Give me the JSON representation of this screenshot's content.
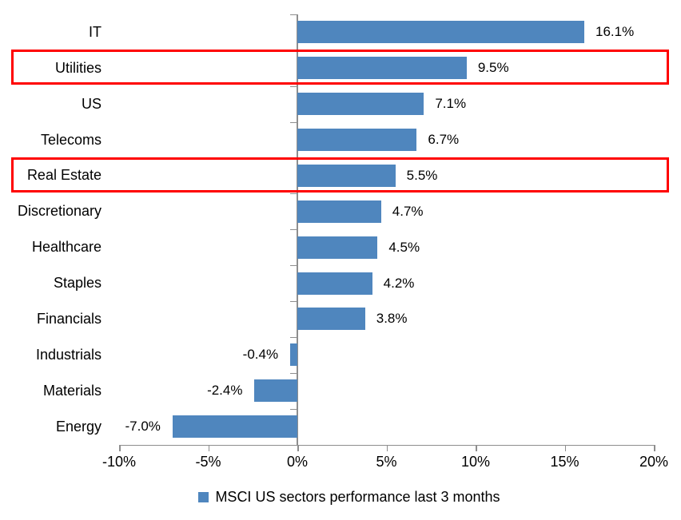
{
  "chart_data": {
    "type": "bar",
    "orientation": "horizontal",
    "title": "",
    "xlabel": "",
    "ylabel": "",
    "categories": [
      "IT",
      "Utilities",
      "US",
      "Telecoms",
      "Real Estate",
      "Discretionary",
      "Healthcare",
      "Staples",
      "Financials",
      "Industrials",
      "Materials",
      "Energy"
    ],
    "values": [
      16.1,
      9.5,
      7.1,
      6.7,
      5.5,
      4.7,
      4.5,
      4.2,
      3.8,
      -0.4,
      -2.4,
      -7.0
    ],
    "value_labels": [
      "16.1%",
      "9.5%",
      "7.1%",
      "6.7%",
      "5.5%",
      "4.7%",
      "4.5%",
      "4.2%",
      "3.8%",
      "-0.4%",
      "-2.4%",
      "-7.0%"
    ],
    "highlighted_categories": [
      "Utilities",
      "Real Estate"
    ],
    "highlight_indices": [
      1,
      4
    ],
    "x_axis": {
      "tick_labels": [
        "-10%",
        "-5%",
        "0%",
        "5%",
        "10%",
        "15%",
        "20%"
      ],
      "tick_values": [
        -10,
        -5,
        0,
        5,
        10,
        15,
        20
      ],
      "range": [
        -10,
        20
      ]
    },
    "legend": {
      "label": "MSCI US sectors performance last 3 months",
      "position": "bottom"
    },
    "colors": {
      "bar": "#4F86BE",
      "highlight_box": "#FF0000",
      "axis": "#8E8E8E",
      "text": "#000000",
      "background": "#FFFFFF"
    },
    "grid": false
  }
}
